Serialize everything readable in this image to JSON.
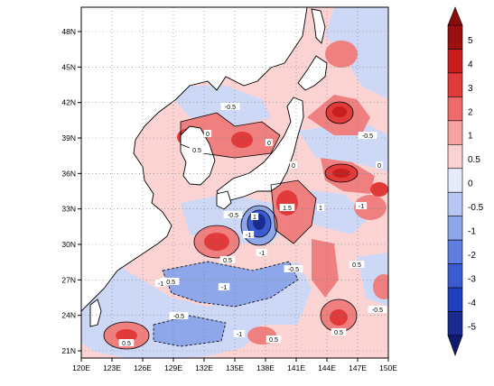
{
  "map": {
    "lon_labels": [
      "120E",
      "123E",
      "126E",
      "129E",
      "132E",
      "135E",
      "138E",
      "141E",
      "144E",
      "147E",
      "150E"
    ],
    "lat_labels": [
      "21N",
      "24N",
      "27N",
      "30N",
      "33N",
      "36N",
      "39N",
      "42N",
      "45N",
      "48N"
    ],
    "contour_labels": [
      "0",
      "0",
      "0.5",
      "-0.5",
      "-1",
      "-1",
      "-0.5",
      "0.5",
      "1",
      "1.5",
      "-1",
      "-0.5",
      "0.5",
      "-1",
      "0.5",
      "-0.5",
      "-1",
      "-0.5",
      "0",
      "0",
      "0.5",
      "-0.5",
      "0.5",
      "1",
      "-1",
      "-0.5"
    ],
    "colors": {
      "land": "#ffffff",
      "strong_positive": "#c81e1e",
      "positive": "#f08080",
      "weak_positive": "#fbd0d0",
      "weak_negative": "#cdd8f7",
      "negative": "#7d97ea",
      "strong_negative": "#1e3cc8"
    }
  },
  "colorbar": {
    "levels": [
      "5",
      "4",
      "3",
      "2",
      "1",
      "0.5",
      "0",
      "-0.5",
      "-1",
      "-2",
      "-3",
      "-4",
      "-5"
    ],
    "colors": [
      "#9b1010",
      "#c81e1e",
      "#e03a3a",
      "#ef6a6a",
      "#f6a3a3",
      "#fbd2d2",
      "#e6ebfb",
      "#b8c7f2",
      "#8ea6ea",
      "#5f7ee0",
      "#3b5bd2",
      "#2040be",
      "#1a2c8f"
    ]
  }
}
